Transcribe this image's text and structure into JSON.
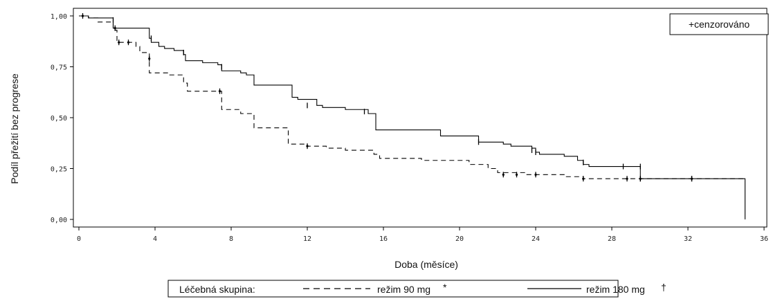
{
  "chart_data": {
    "type": "line",
    "step": true,
    "xlabel": "Doba (měsíce)",
    "ylabel": "Podíl přežití bez progrese",
    "xlim": [
      0,
      36
    ],
    "ylim": [
      0,
      1
    ],
    "xticks": [
      0,
      4,
      8,
      12,
      16,
      20,
      24,
      28,
      32,
      36
    ],
    "xtick_labels": [
      "0",
      "4",
      "8",
      "12",
      "16",
      "20",
      "24",
      "28",
      "32",
      "36"
    ],
    "yticks": [
      0,
      0.25,
      0.5,
      0.75,
      1
    ],
    "ytick_labels": [
      "0,00",
      "0,25",
      "0,50",
      "0,75",
      "1,00"
    ],
    "grid": false,
    "censor_legend": "+cenzorováno",
    "legend_title": "Léčebná skupina:",
    "legend_position": "bottom",
    "series": [
      {
        "name": "režim 90 mg",
        "symbol": "*",
        "dash": true,
        "points": [
          [
            0,
            1.0
          ],
          [
            0.5,
            0.99
          ],
          [
            1.0,
            0.97
          ],
          [
            1.8,
            0.93
          ],
          [
            2.0,
            0.87
          ],
          [
            3.0,
            0.85
          ],
          [
            3.2,
            0.82
          ],
          [
            3.7,
            0.72
          ],
          [
            4.7,
            0.71
          ],
          [
            5.5,
            0.67
          ],
          [
            5.7,
            0.63
          ],
          [
            7.5,
            0.62
          ],
          [
            7.5,
            0.54
          ],
          [
            8.5,
            0.52
          ],
          [
            9.2,
            0.45
          ],
          [
            10.0,
            0.45
          ],
          [
            11.0,
            0.37
          ],
          [
            12.0,
            0.36
          ],
          [
            13.0,
            0.35
          ],
          [
            14.0,
            0.34
          ],
          [
            15.5,
            0.32
          ],
          [
            15.8,
            0.3
          ],
          [
            18.0,
            0.29
          ],
          [
            20.5,
            0.27
          ],
          [
            21.5,
            0.25
          ],
          [
            22.0,
            0.23
          ],
          [
            23.5,
            0.22
          ],
          [
            25.5,
            0.21
          ],
          [
            26.5,
            0.2
          ],
          [
            29.5,
            0.2
          ],
          [
            32.2,
            0.2
          ],
          [
            35.0,
            0.2
          ]
        ],
        "censored": [
          [
            0.2,
            1.0
          ],
          [
            1.9,
            0.94
          ],
          [
            2.1,
            0.87
          ],
          [
            2.6,
            0.87
          ],
          [
            3.7,
            0.79
          ],
          [
            7.4,
            0.63
          ],
          [
            12.0,
            0.36
          ],
          [
            22.3,
            0.22
          ],
          [
            23.0,
            0.22
          ],
          [
            24.0,
            0.22
          ],
          [
            26.5,
            0.2
          ],
          [
            28.8,
            0.2
          ],
          [
            29.5,
            0.2
          ],
          [
            32.2,
            0.2
          ]
        ]
      },
      {
        "name": "režim 180 mg",
        "symbol": "†",
        "dash": false,
        "points": [
          [
            0,
            1.0
          ],
          [
            0.5,
            0.99
          ],
          [
            1.8,
            0.98
          ],
          [
            1.8,
            0.94
          ],
          [
            3.6,
            0.94
          ],
          [
            3.7,
            0.89
          ],
          [
            3.8,
            0.87
          ],
          [
            4.2,
            0.85
          ],
          [
            4.5,
            0.84
          ],
          [
            5.0,
            0.83
          ],
          [
            5.5,
            0.81
          ],
          [
            5.6,
            0.78
          ],
          [
            6.5,
            0.77
          ],
          [
            7.3,
            0.76
          ],
          [
            7.5,
            0.73
          ],
          [
            8.5,
            0.72
          ],
          [
            8.8,
            0.71
          ],
          [
            9.2,
            0.66
          ],
          [
            11.0,
            0.66
          ],
          [
            11.2,
            0.6
          ],
          [
            11.5,
            0.59
          ],
          [
            12.5,
            0.56
          ],
          [
            12.8,
            0.55
          ],
          [
            14.0,
            0.54
          ],
          [
            15.2,
            0.52
          ],
          [
            15.6,
            0.44
          ],
          [
            19.0,
            0.44
          ],
          [
            19.0,
            0.41
          ],
          [
            21.0,
            0.38
          ],
          [
            22.3,
            0.37
          ],
          [
            22.7,
            0.36
          ],
          [
            23.8,
            0.35
          ],
          [
            24.0,
            0.33
          ],
          [
            24.2,
            0.32
          ],
          [
            25.5,
            0.31
          ],
          [
            26.2,
            0.29
          ],
          [
            26.5,
            0.27
          ],
          [
            26.8,
            0.26
          ],
          [
            29.5,
            0.26
          ],
          [
            29.5,
            0.2
          ],
          [
            35.0,
            0.2
          ],
          [
            35.0,
            0.0
          ]
        ],
        "censored": [
          [
            1.8,
            0.98
          ],
          [
            3.8,
            0.89
          ],
          [
            5.5,
            0.82
          ],
          [
            7.5,
            0.75
          ],
          [
            12.0,
            0.56
          ],
          [
            15.0,
            0.53
          ],
          [
            21.0,
            0.38
          ],
          [
            23.8,
            0.34
          ],
          [
            24.0,
            0.33
          ],
          [
            26.5,
            0.28
          ],
          [
            28.6,
            0.26
          ],
          [
            29.5,
            0.26
          ],
          [
            29.5,
            0.2
          ],
          [
            32.2,
            0.2
          ]
        ]
      }
    ]
  }
}
